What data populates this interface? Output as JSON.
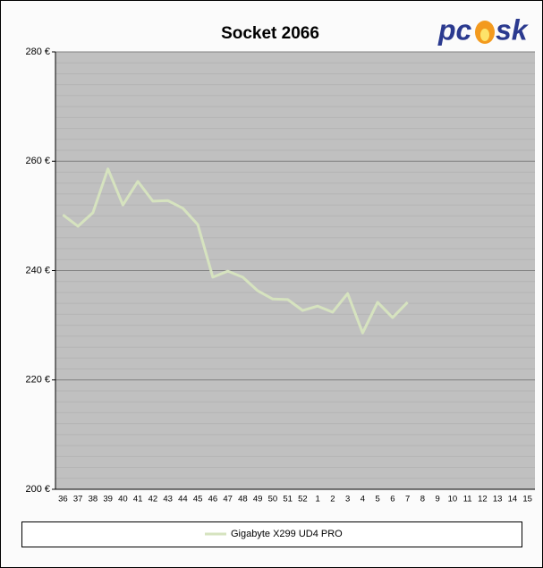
{
  "chart_data": {
    "type": "line",
    "title": "Socket 2066",
    "logo": [
      "pc",
      "sk"
    ],
    "categories": [
      "36",
      "37",
      "38",
      "39",
      "40",
      "41",
      "42",
      "43",
      "44",
      "45",
      "46",
      "47",
      "48",
      "49",
      "50",
      "51",
      "52",
      "1",
      "2",
      "3",
      "4",
      "5",
      "6",
      "7",
      "8",
      "9",
      "10",
      "11",
      "12",
      "13",
      "14",
      "15"
    ],
    "series": [
      {
        "name": "Gigabyte X299 UD4 PRO",
        "color": "#d6e3bf",
        "values": [
          250.2,
          248.1,
          250.6,
          258.6,
          252.0,
          256.3,
          252.7,
          252.8,
          251.4,
          248.4,
          238.8,
          239.9,
          238.8,
          236.3,
          234.8,
          234.7,
          232.7,
          233.5,
          232.4,
          235.8,
          228.6,
          234.2,
          231.4,
          234.2,
          null,
          null,
          null,
          null,
          null,
          null,
          null,
          null
        ]
      }
    ],
    "ylim": [
      200,
      280
    ],
    "yticks": [
      {
        "value": 200,
        "label": "200 €"
      },
      {
        "value": 220,
        "label": "220 €"
      },
      {
        "value": 240,
        "label": "240 €"
      },
      {
        "value": 260,
        "label": "260 €"
      },
      {
        "value": 280,
        "label": "280 €"
      }
    ],
    "yminorticks": [
      202,
      204,
      206,
      208,
      210,
      212,
      214,
      216,
      218,
      222,
      224,
      226,
      228,
      230,
      232,
      234,
      236,
      238,
      242,
      244,
      246,
      248,
      250,
      252,
      254,
      256,
      258,
      262,
      264,
      266,
      268,
      270,
      272,
      274,
      276,
      278
    ],
    "grid": true,
    "legend": "bottom"
  }
}
